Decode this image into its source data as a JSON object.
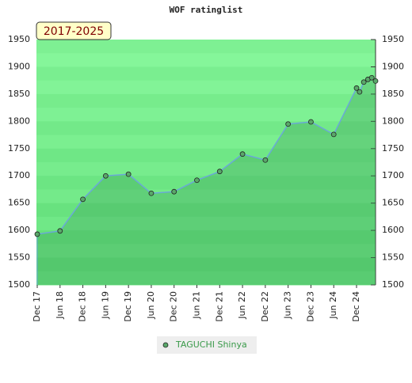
{
  "chart_data": {
    "type": "line",
    "title": "WOF ratinglist",
    "annotation": "2017-2025",
    "x": [
      0,
      6,
      12,
      18,
      24,
      30,
      36,
      42,
      48,
      54,
      60,
      66,
      72,
      78,
      84,
      84.8,
      85.9,
      87,
      88,
      89
    ],
    "series": [
      {
        "name": "TAGUCHI Shinya",
        "color": "#6aa8d8",
        "marker_color": "#5aa86a",
        "values": [
          1593,
          1599,
          1657,
          1700,
          1703,
          1668,
          1671,
          1692,
          1708,
          1740,
          1729,
          1795,
          1799,
          1776,
          1861,
          1854,
          1872,
          1877,
          1880,
          1874
        ]
      }
    ],
    "xlim": [
      0,
      89
    ],
    "xticks": [
      {
        "value": 0,
        "label": "Dec 17"
      },
      {
        "value": 6,
        "label": "Jun 18"
      },
      {
        "value": 12,
        "label": "Dec 18"
      },
      {
        "value": 18,
        "label": "Jun 19"
      },
      {
        "value": 24,
        "label": "Dec 19"
      },
      {
        "value": 30,
        "label": "Jun 20"
      },
      {
        "value": 36,
        "label": "Dec 20"
      },
      {
        "value": 42,
        "label": "Jun 21"
      },
      {
        "value": 48,
        "label": "Dec 21"
      },
      {
        "value": 54,
        "label": "Jun 22"
      },
      {
        "value": 60,
        "label": "Dec 22"
      },
      {
        "value": 66,
        "label": "Jun 23"
      },
      {
        "value": 72,
        "label": "Dec 23"
      },
      {
        "value": 78,
        "label": "Jun 24"
      },
      {
        "value": 84,
        "label": "Dec 24"
      }
    ],
    "ylim": [
      1500,
      1950
    ],
    "yticks": [
      1500,
      1550,
      1600,
      1650,
      1700,
      1750,
      1800,
      1850,
      1900,
      1950
    ],
    "legend": "bottom"
  }
}
